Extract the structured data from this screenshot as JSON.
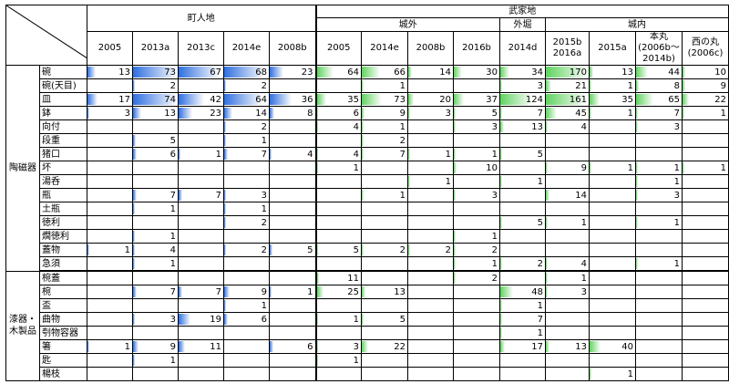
{
  "header": {
    "chonin": "町人地",
    "buke": "武家地",
    "jogai": "城外",
    "sotobori": "外堀",
    "jonai": "城内",
    "columns": [
      "2005",
      "2013a",
      "2013c",
      "2014e",
      "2008b",
      "2005",
      "2014e",
      "2008b",
      "2016b",
      "2014d",
      "2015b\n2016a",
      "2015a",
      "本丸\n(2006b～\n2014b)",
      "西の丸\n(2006c)"
    ]
  },
  "groups": [
    {
      "label": "陶磁器",
      "rows": [
        {
          "item": "碗",
          "values": [
            "13",
            "73",
            "67",
            "68",
            "23",
            "64",
            "66",
            "14",
            "30",
            "34",
            "170",
            "13",
            "44",
            "10"
          ]
        },
        {
          "item": "碗(天目)",
          "values": [
            "",
            "2",
            "",
            "2",
            "",
            "",
            "1",
            "",
            "",
            "3",
            "21",
            "1",
            "8",
            "9"
          ]
        },
        {
          "item": "皿",
          "values": [
            "17",
            "74",
            "42",
            "64",
            "36",
            "35",
            "73",
            "20",
            "37",
            "124",
            "161",
            "35",
            "65",
            "22"
          ]
        },
        {
          "item": "鉢",
          "values": [
            "3",
            "13",
            "23",
            "14",
            "8",
            "6",
            "9",
            "3",
            "5",
            "7",
            "45",
            "1",
            "7",
            "1"
          ]
        },
        {
          "item": "向付",
          "values": [
            "",
            "",
            "",
            "2",
            "",
            "4",
            "1",
            "",
            "3",
            "13",
            "4",
            "",
            "3",
            ""
          ]
        },
        {
          "item": "段重",
          "values": [
            "",
            "5",
            "",
            "1",
            "",
            "",
            "2",
            "",
            "",
            "",
            "",
            "",
            "",
            ""
          ]
        },
        {
          "item": "猪口",
          "values": [
            "",
            "6",
            "1",
            "7",
            "4",
            "4",
            "7",
            "1",
            "1",
            "5",
            "",
            "",
            "",
            ""
          ]
        },
        {
          "item": "坏",
          "values": [
            "",
            "",
            "",
            "",
            "",
            "1",
            "",
            "",
            "10",
            "",
            "9",
            "1",
            "1",
            "1"
          ]
        },
        {
          "item": "湯呑",
          "values": [
            "",
            "",
            "",
            "",
            "",
            "",
            "",
            "1",
            "",
            "1",
            "",
            "",
            "1",
            ""
          ]
        },
        {
          "item": "瓶",
          "values": [
            "",
            "7",
            "7",
            "3",
            "",
            "",
            "1",
            "",
            "3",
            "",
            "14",
            "",
            "3",
            ""
          ]
        },
        {
          "item": "土瓶",
          "values": [
            "",
            "1",
            "",
            "1",
            "",
            "",
            "",
            "",
            "",
            "",
            "",
            "",
            "",
            ""
          ]
        },
        {
          "item": "徳利",
          "values": [
            "",
            "",
            "",
            "2",
            "",
            "",
            "",
            "",
            "",
            "5",
            "1",
            "",
            "1",
            ""
          ]
        },
        {
          "item": "燗徳利",
          "values": [
            "",
            "1",
            "",
            "",
            "",
            "",
            "",
            "",
            "1",
            "",
            "",
            "",
            "",
            ""
          ]
        },
        {
          "item": "蓋物",
          "values": [
            "1",
            "4",
            "",
            "2",
            "5",
            "5",
            "2",
            "2",
            "2",
            "",
            "",
            "",
            "",
            ""
          ]
        },
        {
          "item": "急須",
          "values": [
            "",
            "1",
            "",
            "",
            "",
            "",
            "",
            "",
            "1",
            "2",
            "4",
            "",
            "1",
            ""
          ]
        }
      ]
    },
    {
      "label": "漆器・\n木製品",
      "rows": [
        {
          "item": "椀蓋",
          "values": [
            "",
            "",
            "",
            "",
            "",
            "11",
            "",
            "",
            "2",
            "",
            "1",
            "",
            "",
            ""
          ]
        },
        {
          "item": "椀",
          "values": [
            "",
            "7",
            "7",
            "9",
            "1",
            "25",
            "13",
            "",
            "",
            "48",
            "3",
            "",
            "",
            ""
          ]
        },
        {
          "item": "盃",
          "values": [
            "",
            "",
            "",
            "1",
            "",
            "",
            "",
            "",
            "",
            "1",
            "",
            "",
            "",
            ""
          ]
        },
        {
          "item": "曲物",
          "values": [
            "",
            "3",
            "19",
            "6",
            "",
            "1",
            "5",
            "",
            "",
            "7",
            "",
            "",
            "",
            ""
          ]
        },
        {
          "item": "刳物容器",
          "values": [
            "",
            "",
            "",
            "",
            "",
            "",
            "",
            "",
            "",
            "1",
            "",
            "",
            "",
            ""
          ]
        },
        {
          "item": "箸",
          "values": [
            "1",
            "9",
            "11",
            "",
            "6",
            "3",
            "22",
            "",
            "",
            "17",
            "13",
            "40",
            "",
            ""
          ]
        },
        {
          "item": "匙",
          "values": [
            "",
            "1",
            "",
            "",
            "",
            "1",
            "",
            "",
            "",
            "",
            "",
            "",
            "",
            ""
          ]
        },
        {
          "item": "楊枝",
          "values": [
            "",
            "",
            "",
            "",
            "",
            "",
            "",
            "",
            "",
            "",
            "",
            "1",
            "",
            ""
          ]
        }
      ]
    }
  ],
  "colors": {
    "blue": "#2f6fe0",
    "green": "#5fd35f"
  }
}
